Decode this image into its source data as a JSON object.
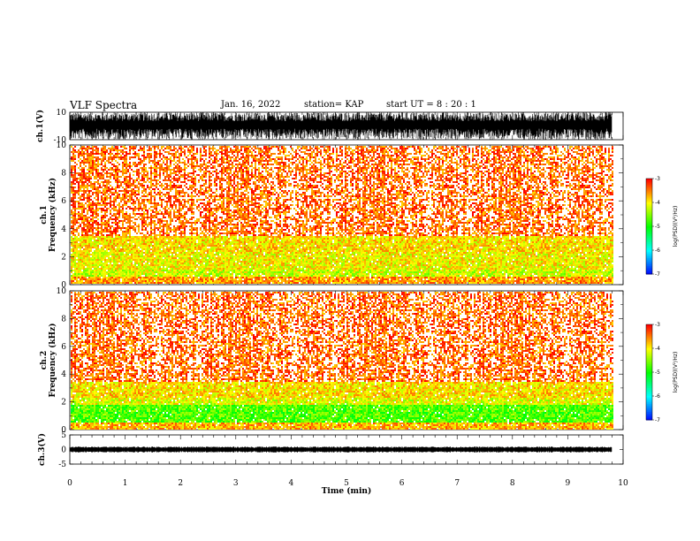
{
  "header": {
    "title": "VLF Spectra",
    "date": "Jan. 16, 2022",
    "station": "station= KAP",
    "start": "start  UT =   8 : 20 : 1"
  },
  "chart_data": [
    {
      "type": "line",
      "name_label": "ch.1(V)",
      "ylim": [
        -10,
        10
      ],
      "yticks": [
        "10",
        "-10"
      ],
      "xlim": [
        0,
        10
      ],
      "description_values": "dense waveform oscillating roughly between -10 and 10 V"
    },
    {
      "type": "heatmap",
      "ylabel": "ch.1\nFrequency (kHz)",
      "ylim": [
        0,
        10
      ],
      "yticks": [
        "0",
        "2",
        "4",
        "6",
        "8",
        "10"
      ],
      "xlim": [
        0,
        10
      ],
      "data_end_min": 9.8,
      "colorbar": {
        "label": "log(PSD)(V²/Hz)",
        "ticks": [
          "-3",
          "-4",
          "-5",
          "-6",
          "-7"
        ],
        "range": [
          -7,
          -3
        ]
      },
      "bands_khz": [
        [
          0,
          0.6,
          -3.6
        ],
        [
          0.6,
          1.2,
          -4.2
        ],
        [
          1.2,
          2.4,
          -4.0
        ],
        [
          2.4,
          3.5,
          -3.9
        ],
        [
          3.5,
          10,
          -3.4
        ]
      ]
    },
    {
      "type": "heatmap",
      "ylabel": "ch.2\nFrequency (kHz)",
      "ylim": [
        0,
        10
      ],
      "yticks": [
        "0",
        "2",
        "4",
        "6",
        "8",
        "10"
      ],
      "xlim": [
        0,
        10
      ],
      "data_end_min": 9.8,
      "colorbar": {
        "label": "log(PSD)(V²/Hz)",
        "ticks": [
          "-3",
          "-4",
          "-5",
          "-6",
          "-7"
        ],
        "range": [
          -7,
          -3
        ]
      },
      "bands_khz": [
        [
          0,
          0.6,
          -3.7
        ],
        [
          0.6,
          1.8,
          -4.7
        ],
        [
          1.8,
          2.4,
          -4.1
        ],
        [
          2.4,
          3.5,
          -3.9
        ],
        [
          3.5,
          10,
          -3.4
        ]
      ]
    },
    {
      "type": "line",
      "name_label": "ch.3(V)",
      "ylim": [
        -5,
        5
      ],
      "yticks": [
        "5",
        "0",
        "-5"
      ],
      "xlim": [
        0,
        10
      ],
      "xlabel": "Time  (min)",
      "xticks": [
        "0",
        "1",
        "2",
        "3",
        "4",
        "5",
        "6",
        "7",
        "8",
        "9",
        "10"
      ],
      "description_values": "near-constant thick trace around 0 V"
    }
  ],
  "colors": {
    "high": "#ff0000",
    "mid": "#ffff00",
    "low": "#00ff00",
    "lower": "#00ffff",
    "lowest": "#0000ff"
  }
}
